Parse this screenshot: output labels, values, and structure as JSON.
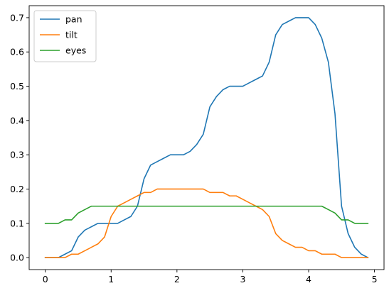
{
  "chart_data": {
    "type": "line",
    "title": "",
    "xlabel": "",
    "ylabel": "",
    "xlim": [
      -0.245,
      5.145
    ],
    "ylim": [
      -0.035,
      0.735
    ],
    "xticks": [
      0,
      1,
      2,
      3,
      4,
      5
    ],
    "xtick_labels": [
      "0",
      "1",
      "2",
      "3",
      "4",
      "5"
    ],
    "yticks": [
      0.0,
      0.1,
      0.2,
      0.3,
      0.4,
      0.5,
      0.6,
      0.7
    ],
    "ytick_labels": [
      "0.0",
      "0.1",
      "0.2",
      "0.3",
      "0.4",
      "0.5",
      "0.6",
      "0.7"
    ],
    "grid": false,
    "legend_position": "top-left",
    "x": [
      0,
      0.1,
      0.2,
      0.3,
      0.4,
      0.5,
      0.6,
      0.7,
      0.8,
      0.9,
      1.0,
      1.1,
      1.2,
      1.3,
      1.4,
      1.5,
      1.6,
      1.7,
      1.8,
      1.9,
      2.0,
      2.1,
      2.2,
      2.3,
      2.4,
      2.5,
      2.6,
      2.7,
      2.8,
      2.9,
      3.0,
      3.1,
      3.2,
      3.3,
      3.4,
      3.5,
      3.6,
      3.7,
      3.8,
      3.9,
      4.0,
      4.1,
      4.2,
      4.3,
      4.4,
      4.5,
      4.6,
      4.7,
      4.8,
      4.9
    ],
    "series": [
      {
        "name": "pan",
        "color": "#1f77b4",
        "values": [
          0,
          0,
          0,
          0.01,
          0.02,
          0.06,
          0.08,
          0.09,
          0.1,
          0.1,
          0.1,
          0.1,
          0.11,
          0.12,
          0.15,
          0.23,
          0.27,
          0.28,
          0.29,
          0.3,
          0.3,
          0.3,
          0.31,
          0.33,
          0.36,
          0.44,
          0.47,
          0.49,
          0.5,
          0.5,
          0.5,
          0.51,
          0.52,
          0.53,
          0.57,
          0.65,
          0.68,
          0.69,
          0.7,
          0.7,
          0.7,
          0.68,
          0.64,
          0.57,
          0.42,
          0.15,
          0.07,
          0.03,
          0.01,
          0
        ]
      },
      {
        "name": "tilt",
        "color": "#ff7f0e",
        "values": [
          0,
          0,
          0,
          0,
          0.01,
          0.01,
          0.02,
          0.03,
          0.04,
          0.06,
          0.12,
          0.15,
          0.16,
          0.17,
          0.18,
          0.19,
          0.19,
          0.2,
          0.2,
          0.2,
          0.2,
          0.2,
          0.2,
          0.2,
          0.2,
          0.19,
          0.19,
          0.19,
          0.18,
          0.18,
          0.17,
          0.16,
          0.15,
          0.14,
          0.12,
          0.07,
          0.05,
          0.04,
          0.03,
          0.03,
          0.02,
          0.02,
          0.01,
          0.01,
          0.01,
          0,
          0,
          0,
          0,
          0
        ]
      },
      {
        "name": "eyes",
        "color": "#2ca02c",
        "values": [
          0.1,
          0.1,
          0.1,
          0.11,
          0.11,
          0.13,
          0.14,
          0.15,
          0.15,
          0.15,
          0.15,
          0.15,
          0.15,
          0.15,
          0.15,
          0.15,
          0.15,
          0.15,
          0.15,
          0.15,
          0.15,
          0.15,
          0.15,
          0.15,
          0.15,
          0.15,
          0.15,
          0.15,
          0.15,
          0.15,
          0.15,
          0.15,
          0.15,
          0.15,
          0.15,
          0.15,
          0.15,
          0.15,
          0.15,
          0.15,
          0.15,
          0.15,
          0.15,
          0.14,
          0.13,
          0.11,
          0.11,
          0.1,
          0.1,
          0.1
        ]
      }
    ]
  }
}
